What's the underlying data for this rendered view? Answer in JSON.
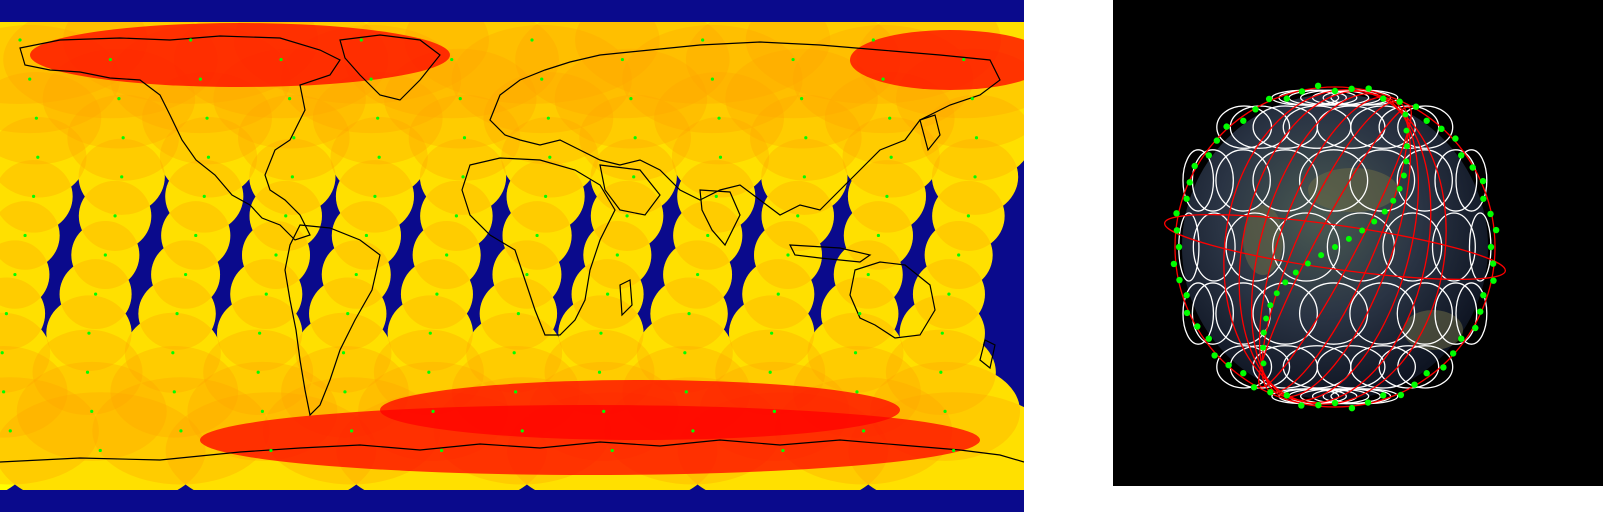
{
  "colors": {
    "ocean": "#0a0a8c",
    "coverage_single": "#ffff00",
    "coverage_double": "#ffa500",
    "coverage_multi": "#ff0000",
    "satellite_dot": "#00ff00",
    "coastline": "#000000",
    "space_background": "#000000",
    "orbit_line": "#ff0000",
    "footprint_ring": "#ffffff"
  },
  "panels": [
    {
      "name": "coverage-map",
      "kind": "equirectangular world map with satellite footprint coverage"
    },
    {
      "name": "globe-3d-view",
      "kind": "3D globe with orbit planes, satellites and footprint rings"
    }
  ]
}
